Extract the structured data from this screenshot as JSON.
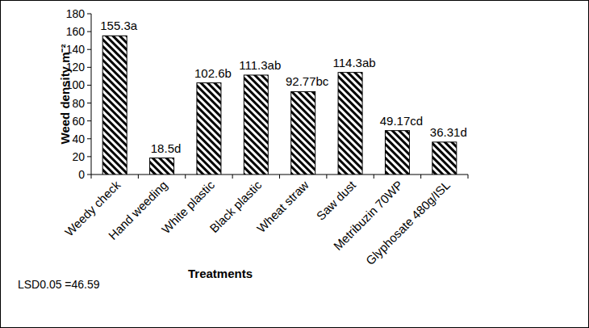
{
  "chart_data": {
    "type": "bar",
    "y_label": "Weed density m⁻²",
    "x_label": "Treatments",
    "annotations": [
      "LSD0.05 =46.59"
    ],
    "categories": [
      "Weedy check",
      "Hand weeding",
      "White plastic",
      "Black plastic",
      "Wheat straw",
      "Saw dust",
      "Metribuzin 70WP",
      "Glyphosate 480g/ISL"
    ],
    "values": [
      155.3,
      18.5,
      102.6,
      111.3,
      92.77,
      114.3,
      49.17,
      36.31
    ],
    "value_labels": [
      "155.3a",
      "18.5d",
      "102.6b",
      "111.3ab",
      "92.77bc",
      "114.3ab",
      "49.17cd",
      "36.31d"
    ],
    "data_labels": true,
    "color": "#000000",
    "ylim": [
      0,
      180
    ],
    "yticks": [
      0,
      20,
      40,
      60,
      80,
      100,
      120,
      140,
      160,
      180
    ],
    "grid": false
  }
}
